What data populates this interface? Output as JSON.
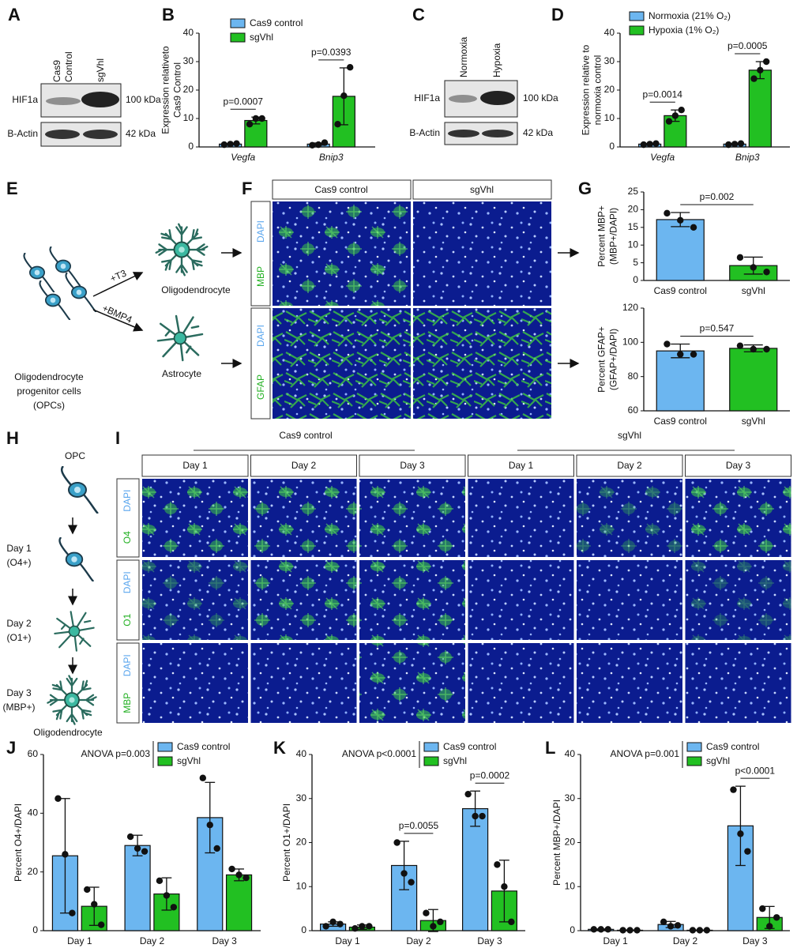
{
  "panel_letters": [
    "A",
    "B",
    "C",
    "D",
    "E",
    "F",
    "G",
    "H",
    "I",
    "J",
    "K",
    "L"
  ],
  "blot_A": {
    "lanes": [
      [
        "Cas9",
        "Control"
      ],
      [
        "sgVhl"
      ]
    ],
    "rows": [
      "HIF1a",
      "B-Actin"
    ],
    "sizes": [
      "100 kDa",
      "42 kDa"
    ]
  },
  "blot_C": {
    "lanes": [
      [
        "Normoxia"
      ],
      [
        "Hypoxia"
      ]
    ],
    "rows": [
      "HIF1a",
      "B-Actin"
    ],
    "sizes": [
      "100 kDa",
      "42 kDa"
    ]
  },
  "diagram_E": {
    "source": [
      "Oligodendrocyte",
      "progenitor cells",
      "(OPCs)"
    ],
    "treatments": [
      "+T3",
      "+BMP4"
    ],
    "outcomes": [
      "Oligodendrocyte",
      "Astrocyte"
    ]
  },
  "micrographs_F": {
    "columns": [
      "Cas9 control",
      "sgVhl"
    ],
    "rows": [
      [
        "DAPI",
        "MBP"
      ],
      [
        "DAPI",
        "GFAP"
      ]
    ]
  },
  "diagram_H": {
    "top": "OPC",
    "stages": [
      [
        "Day 1",
        "(O4+)"
      ],
      [
        "Day 2",
        "(O1+)"
      ],
      [
        "Day 3",
        "(MBP+)"
      ]
    ],
    "bottom": "Oligodendrocyte"
  },
  "micrographs_I": {
    "groups": [
      "Cas9 control",
      "sgVhl"
    ],
    "columns": [
      "Day 1",
      "Day 2",
      "Day 3",
      "Day 1",
      "Day 2",
      "Day 3"
    ],
    "rows": [
      [
        "DAPI",
        "O4"
      ],
      [
        "DAPI",
        "O1"
      ],
      [
        "DAPI",
        "MBP"
      ]
    ]
  },
  "chart_data": [
    {
      "type": "bar",
      "ylabel": [
        "Expression relativeto",
        "Cas9 Control"
      ],
      "categories": [
        "Vegfa",
        "Bnip3"
      ],
      "ylim": [
        0,
        40
      ],
      "yticks": [
        0,
        10,
        20,
        30,
        40
      ],
      "series": [
        {
          "name": "Cas9 control",
          "color": "#6cb6f0",
          "values": [
            1,
            1
          ],
          "errors": [
            0.2,
            0.4
          ],
          "points": [
            [
              0.8,
              1,
              1.2
            ],
            [
              0.6,
              0.8,
              1.5
            ]
          ]
        },
        {
          "name": "sgVhl",
          "color": "#22c022",
          "values": [
            9.3,
            17.8
          ],
          "errors": [
            1.2,
            10
          ],
          "points": [
            [
              8,
              10,
              10
            ],
            [
              8,
              18,
              28
            ]
          ]
        }
      ],
      "pvalues": [
        "p=0.0007",
        "p=0.0393"
      ]
    },
    {
      "type": "bar",
      "ylabel": [
        "Expression relative to",
        "normoxia control"
      ],
      "categories": [
        "Vegfa",
        "Bnip3"
      ],
      "ylim": [
        0,
        40
      ],
      "yticks": [
        0,
        10,
        20,
        30,
        40
      ],
      "series": [
        {
          "name": "Normoxia (21% O₂)",
          "color": "#6cb6f0",
          "values": [
            1,
            1
          ],
          "errors": [
            0.2,
            0.2
          ],
          "points": [
            [
              0.8,
              1,
              1.2
            ],
            [
              0.8,
              1,
              1.2
            ]
          ]
        },
        {
          "name": "Hypoxia (1% O₂)",
          "color": "#22c022",
          "values": [
            11,
            27
          ],
          "errors": [
            2,
            3
          ],
          "points": [
            [
              9,
              11,
              13
            ],
            [
              24,
              27,
              30
            ]
          ]
        }
      ],
      "pvalues": [
        "p=0.0014",
        "p=0.0005"
      ]
    },
    {
      "type": "bar",
      "ylabel": [
        "Percent MBP+",
        "(MBP+/DAPI)"
      ],
      "categories": [
        "Cas9 control",
        "sgVhl"
      ],
      "values": [
        17.2,
        4.2
      ],
      "errors": [
        2,
        2.4
      ],
      "points": [
        [
          19,
          17,
          15
        ],
        [
          6.5,
          3.7,
          2.4
        ]
      ],
      "colors": [
        "#6cb6f0",
        "#22c022"
      ],
      "ylim": [
        0,
        25
      ],
      "yticks": [
        0,
        5,
        10,
        15,
        20,
        25
      ],
      "pvalue": "p=0.002"
    },
    {
      "type": "bar",
      "ylabel": [
        "Percent GFAP+",
        "(GFAP+/DAPI)"
      ],
      "categories": [
        "Cas9 control",
        "sgVhl"
      ],
      "values": [
        95,
        96.5
      ],
      "errors": [
        4,
        2
      ],
      "points": [
        [
          99,
          93,
          93
        ],
        [
          98,
          96,
          96
        ]
      ],
      "colors": [
        "#6cb6f0",
        "#22c022"
      ],
      "ylim": [
        60,
        120
      ],
      "yticks": [
        60,
        80,
        100,
        120
      ],
      "pvalue": "p=0.547"
    },
    {
      "type": "bar",
      "ylabel": [
        "Percent O4+/DAPI"
      ],
      "categories": [
        "Day 1",
        "Day 2",
        "Day 3"
      ],
      "ylim": [
        0,
        60
      ],
      "yticks": [
        0,
        20,
        40,
        60
      ],
      "anova": "ANOVA p=0.003",
      "series": [
        {
          "name": "Cas9 control",
          "color": "#6cb6f0",
          "values": [
            25.5,
            29,
            38.5
          ],
          "errors": [
            19.5,
            3.5,
            12
          ],
          "points": [
            [
              45,
              26,
              6
            ],
            [
              32,
              28,
              27
            ],
            [
              52,
              36,
              28
            ]
          ]
        },
        {
          "name": "sgVhl",
          "color": "#22c022",
          "values": [
            8.3,
            12.5,
            19
          ],
          "errors": [
            6.5,
            5.5,
            2
          ],
          "points": [
            [
              14,
              9,
              2
            ],
            [
              17,
              12,
              8
            ],
            [
              21,
              19,
              18
            ]
          ]
        }
      ]
    },
    {
      "type": "bar",
      "ylabel": [
        "Percent O1+/DAPI"
      ],
      "categories": [
        "Day 1",
        "Day 2",
        "Day 3"
      ],
      "ylim": [
        0,
        40
      ],
      "yticks": [
        0,
        10,
        20,
        30,
        40
      ],
      "anova": "ANOVA p<0.0001",
      "series": [
        {
          "name": "Cas9 control",
          "color": "#6cb6f0",
          "values": [
            1.5,
            14.8,
            27.7
          ],
          "errors": [
            0.5,
            5.5,
            4
          ],
          "points": [
            [
              1,
              2,
              1.5
            ],
            [
              20,
              13,
              11
            ],
            [
              31,
              26,
              26
            ]
          ]
        },
        {
          "name": "sgVhl",
          "color": "#22c022",
          "values": [
            0.8,
            2.3,
            9
          ],
          "errors": [
            0.5,
            2.5,
            7
          ],
          "points": [
            [
              0.5,
              1,
              1
            ],
            [
              4,
              1,
              2
            ],
            [
              15,
              10,
              2
            ]
          ]
        }
      ],
      "pvalues": [
        null,
        "p=0.0055",
        "p=0.0002"
      ]
    },
    {
      "type": "bar",
      "ylabel": [
        "Percent MBP+/DAPI"
      ],
      "categories": [
        "Day 1",
        "Day 2",
        "Day 3"
      ],
      "ylim": [
        0,
        40
      ],
      "yticks": [
        0,
        10,
        20,
        30,
        40
      ],
      "anova": "ANOVA p=0.001",
      "series": [
        {
          "name": "Cas9 control",
          "color": "#6cb6f0",
          "values": [
            0.3,
            1.4,
            23.8
          ],
          "errors": [
            0.1,
            0.7,
            9
          ],
          "points": [
            [
              0.3,
              0.3,
              0.3
            ],
            [
              2,
              1,
              1.2
            ],
            [
              32,
              22,
              18
            ]
          ]
        },
        {
          "name": "sgVhl",
          "color": "#22c022",
          "values": [
            0.1,
            0.1,
            3
          ],
          "errors": [
            0.05,
            0.05,
            2.5
          ],
          "points": [
            [
              0.1,
              0.1,
              0.1
            ],
            [
              0.1,
              0.1,
              0.1
            ],
            [
              5,
              1,
              3
            ]
          ]
        }
      ],
      "pvalues": [
        null,
        null,
        "p<0.0001"
      ]
    }
  ]
}
